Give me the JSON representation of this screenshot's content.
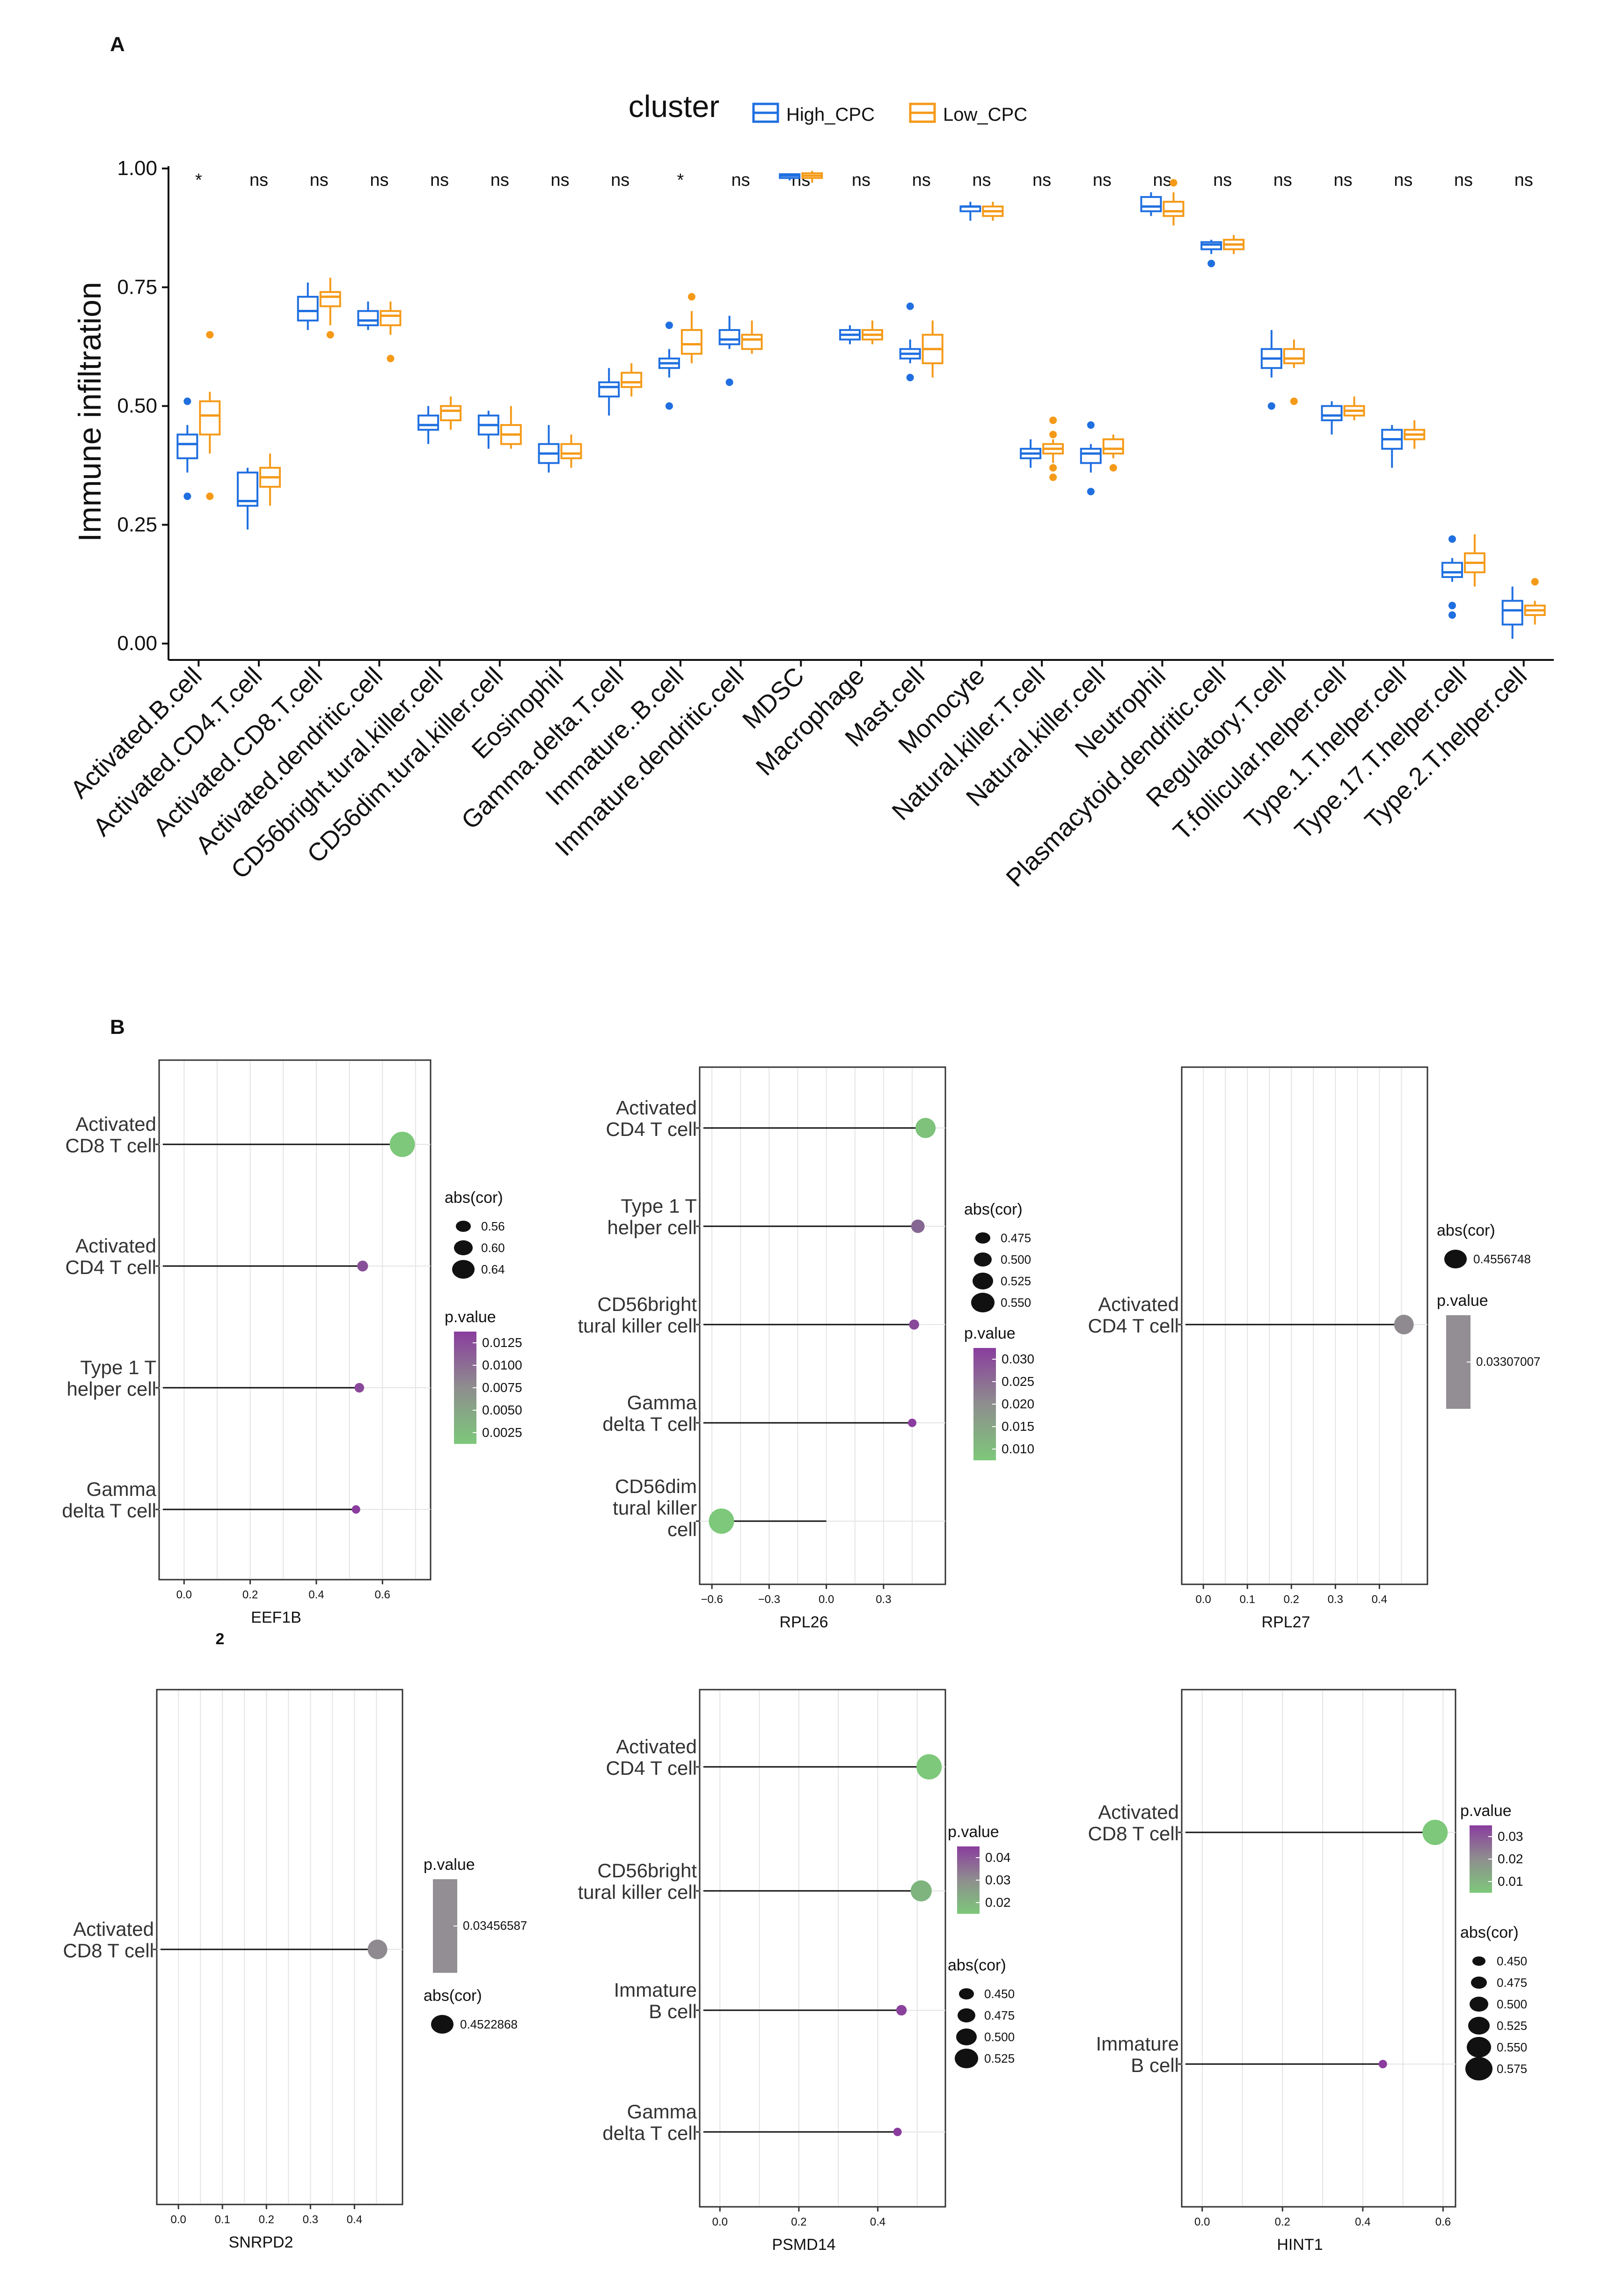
{
  "panel_a_label": "A",
  "panel_b_label": "B",
  "colors": {
    "high": "#1f6fe0",
    "low": "#f59a18",
    "green": "#7dc87a",
    "purple": "#8a3d9e",
    "gray": "#999999"
  },
  "chart_data": [
    {
      "type": "box",
      "id": "A",
      "legend_title": "cluster",
      "ylabel": "Immune infiltration",
      "ylim": [
        0,
        1.0
      ],
      "yticks": [
        "0.00",
        "0.25",
        "0.50",
        "0.75",
        "1.00"
      ],
      "series": [
        {
          "name": "High_CPC",
          "color": "#1f6fe0"
        },
        {
          "name": "Low_CPC",
          "color": "#f59a18"
        }
      ],
      "categories": [
        "Activated.B.cell",
        "Activated.CD4.T.cell",
        "Activated.CD8.T.cell",
        "Activated.dendritic.cell",
        "CD56bright.tural.killer.cell",
        "CD56dim.tural.killer.cell",
        "Eosinophil",
        "Gamma.delta.T.cell",
        "Immature..B.cell",
        "Immature.dendritic.cell",
        "MDSC",
        "Macrophage",
        "Mast.cell",
        "Monocyte",
        "Natural.killer.T.cell",
        "Natural.killer.cell",
        "Neutrophil",
        "Plasmacytoid.dendritic.cell",
        "Regulatory.T.cell",
        "T.follicular.helper.cell",
        "Type.1.T.helper.cell",
        "Type.17.T.helper.cell",
        "Type.2.T.helper.cell"
      ],
      "significance": [
        "*",
        "ns",
        "ns",
        "ns",
        "ns",
        "ns",
        "ns",
        "ns",
        "*",
        "ns",
        "ns",
        "ns",
        "ns",
        "ns",
        "ns",
        "ns",
        "ns",
        "ns",
        "ns",
        "ns",
        "ns",
        "ns",
        "ns"
      ],
      "high": [
        [
          0.36,
          0.39,
          0.42,
          0.44,
          0.46,
          [
            0.31,
            0.51
          ]
        ],
        [
          0.24,
          0.29,
          0.3,
          0.36,
          0.37,
          []
        ],
        [
          0.66,
          0.68,
          0.7,
          0.73,
          0.76,
          []
        ],
        [
          0.66,
          0.67,
          0.68,
          0.7,
          0.72,
          []
        ],
        [
          0.42,
          0.45,
          0.46,
          0.48,
          0.5,
          []
        ],
        [
          0.41,
          0.44,
          0.46,
          0.48,
          0.49,
          []
        ],
        [
          0.36,
          0.38,
          0.4,
          0.42,
          0.46,
          []
        ],
        [
          0.48,
          0.52,
          0.54,
          0.55,
          0.58,
          []
        ],
        [
          0.56,
          0.58,
          0.59,
          0.6,
          0.62,
          [
            0.5,
            0.67
          ]
        ],
        [
          0.62,
          0.63,
          0.64,
          0.66,
          0.69,
          [
            0.55
          ]
        ],
        [
          0.975,
          0.98,
          0.985,
          0.988,
          0.99,
          []
        ],
        [
          0.63,
          0.64,
          0.65,
          0.66,
          0.67,
          []
        ],
        [
          0.59,
          0.6,
          0.61,
          0.62,
          0.64,
          [
            0.56,
            0.71
          ]
        ],
        [
          0.89,
          0.91,
          0.92,
          0.92,
          0.93,
          []
        ],
        [
          0.37,
          0.39,
          0.4,
          0.41,
          0.43,
          []
        ],
        [
          0.36,
          0.38,
          0.4,
          0.41,
          0.42,
          [
            0.32,
            0.46
          ]
        ],
        [
          0.9,
          0.91,
          0.92,
          0.94,
          0.95,
          []
        ],
        [
          0.82,
          0.83,
          0.84,
          0.845,
          0.85,
          [
            0.8
          ]
        ],
        [
          0.56,
          0.58,
          0.6,
          0.62,
          0.66,
          [
            0.5
          ]
        ],
        [
          0.44,
          0.47,
          0.48,
          0.5,
          0.51,
          []
        ],
        [
          0.37,
          0.41,
          0.43,
          0.45,
          0.46,
          []
        ],
        [
          0.13,
          0.14,
          0.15,
          0.17,
          0.18,
          [
            0.06,
            0.08,
            0.22
          ]
        ],
        [
          0.01,
          0.04,
          0.07,
          0.09,
          0.12,
          []
        ]
      ],
      "low": [
        [
          0.4,
          0.44,
          0.48,
          0.51,
          0.53,
          [
            0.31,
            0.65
          ]
        ],
        [
          0.29,
          0.33,
          0.35,
          0.37,
          0.4,
          []
        ],
        [
          0.67,
          0.71,
          0.73,
          0.74,
          0.77,
          [
            0.65
          ]
        ],
        [
          0.65,
          0.67,
          0.69,
          0.7,
          0.72,
          [
            0.6
          ]
        ],
        [
          0.45,
          0.47,
          0.49,
          0.5,
          0.52,
          []
        ],
        [
          0.41,
          0.42,
          0.44,
          0.46,
          0.5,
          []
        ],
        [
          0.37,
          0.39,
          0.4,
          0.42,
          0.44,
          []
        ],
        [
          0.52,
          0.54,
          0.55,
          0.57,
          0.59,
          []
        ],
        [
          0.59,
          0.61,
          0.63,
          0.66,
          0.7,
          [
            0.73
          ]
        ],
        [
          0.61,
          0.62,
          0.64,
          0.65,
          0.68,
          []
        ],
        [
          0.97,
          0.98,
          0.985,
          0.99,
          0.995,
          []
        ],
        [
          0.63,
          0.64,
          0.65,
          0.66,
          0.68,
          []
        ],
        [
          0.56,
          0.59,
          0.62,
          0.65,
          0.68,
          []
        ],
        [
          0.89,
          0.9,
          0.91,
          0.92,
          0.93,
          []
        ],
        [
          0.38,
          0.4,
          0.41,
          0.42,
          0.43,
          [
            0.35,
            0.37,
            0.44,
            0.47
          ]
        ],
        [
          0.39,
          0.4,
          0.41,
          0.43,
          0.44,
          [
            0.37
          ]
        ],
        [
          0.88,
          0.9,
          0.91,
          0.93,
          0.95,
          [
            0.97
          ]
        ],
        [
          0.82,
          0.83,
          0.84,
          0.85,
          0.86,
          []
        ],
        [
          0.58,
          0.59,
          0.6,
          0.62,
          0.64,
          [
            0.51
          ]
        ],
        [
          0.47,
          0.48,
          0.49,
          0.5,
          0.52,
          []
        ],
        [
          0.41,
          0.43,
          0.44,
          0.45,
          0.47,
          []
        ],
        [
          0.12,
          0.15,
          0.17,
          0.19,
          0.23,
          []
        ],
        [
          0.04,
          0.06,
          0.07,
          0.08,
          0.09,
          [
            0.13
          ]
        ]
      ]
    },
    {
      "type": "lollipop",
      "id": "B1",
      "xlabel": "EEF1B",
      "extra_label": "2",
      "xlim": [
        -0.05,
        0.72
      ],
      "xticks": [
        0,
        0.2,
        0.4,
        0.6
      ],
      "xtick_labels": [
        "0.0",
        "0.2",
        "0.4",
        "0.6"
      ],
      "items": [
        {
          "label": [
            "Activated",
            "CD8 T cell"
          ],
          "cor": 0.66,
          "p": 0.0025
        },
        {
          "label": [
            "Activated",
            "CD4 T cell"
          ],
          "cor": 0.54,
          "p": 0.0125
        },
        {
          "label": [
            "Type 1 T",
            "helper  cell"
          ],
          "cor": 0.53,
          "p": 0.013
        },
        {
          "label": [
            "Gamma",
            "delta T cell"
          ],
          "cor": 0.52,
          "p": 0.014
        }
      ],
      "legends": [
        {
          "kind": "size",
          "title": "abs(cor)",
          "labels": [
            "0.56",
            "0.60",
            "0.64"
          ],
          "sizes": [
            12,
            16,
            20
          ]
        },
        {
          "kind": "color",
          "title": "p.value",
          "labels": [
            "0.0125",
            "0.0100",
            "0.0075",
            "0.0050",
            "0.0025"
          ]
        }
      ]
    },
    {
      "type": "lollipop",
      "id": "B2",
      "xlabel": "RPL26",
      "xlim": [
        -0.62,
        0.58
      ],
      "xticks": [
        -0.6,
        -0.3,
        0,
        0.3
      ],
      "xtick_labels": [
        "−0.6",
        "−0.3",
        "0.0",
        "0.3"
      ],
      "items": [
        {
          "label": [
            "Activated",
            "CD4 T cell"
          ],
          "cor": 0.52,
          "p": 0.01
        },
        {
          "label": [
            "Type 1 T",
            "helper cell"
          ],
          "cor": 0.48,
          "p": 0.025
        },
        {
          "label": [
            "CD56bright",
            "tural killer cell"
          ],
          "cor": 0.46,
          "p": 0.03
        },
        {
          "label": [
            "Gamma",
            "delta T cell"
          ],
          "cor": 0.45,
          "p": 0.032
        },
        {
          "label": [
            "CD56dim",
            "tural killer",
            "cell"
          ],
          "cor": -0.55,
          "p": 0.009
        }
      ],
      "legends": [
        {
          "kind": "size",
          "title": "abs(cor)",
          "labels": [
            "0.475",
            "0.500",
            "0.525",
            "0.550"
          ],
          "sizes": [
            12,
            15,
            18,
            21
          ]
        },
        {
          "kind": "color",
          "title": "p.value",
          "labels": [
            "0.030",
            "0.025",
            "0.020",
            "0.015",
            "0.010"
          ]
        }
      ]
    },
    {
      "type": "lollipop",
      "id": "B3",
      "xlabel": "RPL27",
      "xlim": [
        -0.03,
        0.49
      ],
      "xticks": [
        0,
        0.1,
        0.2,
        0.3,
        0.4
      ],
      "xtick_labels": [
        "0.0",
        "0.1",
        "0.2",
        "0.3",
        "0.4"
      ],
      "items": [
        {
          "label": [
            "Activated",
            "CD4 T cell"
          ],
          "cor": 0.4556748,
          "p": 0.03307007
        }
      ],
      "legends": [
        {
          "kind": "size",
          "title": "abs(cor)",
          "labels": [
            "0.4556748"
          ],
          "sizes": [
            20
          ]
        },
        {
          "kind": "gray",
          "title": "p.value",
          "labels": [
            "0.03307007"
          ]
        }
      ]
    },
    {
      "type": "lollipop",
      "id": "B4",
      "xlabel": "SNRPD2",
      "xlim": [
        -0.03,
        0.49
      ],
      "xticks": [
        0,
        0.1,
        0.2,
        0.3,
        0.4
      ],
      "xtick_labels": [
        "0.0",
        "0.1",
        "0.2",
        "0.3",
        "0.4"
      ],
      "items": [
        {
          "label": [
            "Activated",
            "CD8 T cell"
          ],
          "cor": 0.4522868,
          "p": 0.03456587
        }
      ],
      "legends": [
        {
          "kind": "gray",
          "title": "p.value",
          "labels": [
            "0.03456587"
          ]
        },
        {
          "kind": "size",
          "title": "abs(cor)",
          "labels": [
            "0.4522868"
          ],
          "sizes": [
            20
          ]
        }
      ]
    },
    {
      "type": "lollipop",
      "id": "B5",
      "xlabel": "PSMD14",
      "xlim": [
        -0.03,
        0.55
      ],
      "xticks": [
        0,
        0.2,
        0.4
      ],
      "xtick_labels": [
        "0.0",
        "0.2",
        "0.4"
      ],
      "items": [
        {
          "label": [
            "Activated",
            "CD4 T cell"
          ],
          "cor": 0.53,
          "p": 0.018
        },
        {
          "label": [
            "CD56bright",
            "tural killer cell"
          ],
          "cor": 0.51,
          "p": 0.022
        },
        {
          "label": [
            "Immature",
            "B cell"
          ],
          "cor": 0.46,
          "p": 0.045
        },
        {
          "label": [
            "Gamma",
            "delta T cell"
          ],
          "cor": 0.45,
          "p": 0.046
        }
      ],
      "legends": [
        {
          "kind": "color",
          "title": "p.value",
          "labels": [
            "0.04",
            "0.03",
            "0.02"
          ]
        },
        {
          "kind": "size",
          "title": "abs(cor)",
          "labels": [
            "0.450",
            "0.475",
            "0.500",
            "0.525"
          ],
          "sizes": [
            12,
            15,
            18,
            21
          ]
        }
      ]
    },
    {
      "type": "lollipop",
      "id": "B6",
      "xlabel": "HINT1",
      "xlim": [
        -0.03,
        0.61
      ],
      "xticks": [
        0,
        0.2,
        0.4,
        0.6
      ],
      "xtick_labels": [
        "0.0",
        "0.2",
        "0.4",
        "0.6"
      ],
      "items": [
        {
          "label": [
            "Activated",
            "CD8 T cell"
          ],
          "cor": 0.58,
          "p": 0.005
        },
        {
          "label": [
            "Immature",
            "B cell"
          ],
          "cor": 0.45,
          "p": 0.036
        }
      ],
      "legends": [
        {
          "kind": "color",
          "title": "p.value",
          "labels": [
            "0.03",
            "0.02",
            "0.01"
          ]
        },
        {
          "kind": "size",
          "title": "abs(cor)",
          "labels": [
            "0.450",
            "0.475",
            "0.500",
            "0.525",
            "0.550",
            "0.575"
          ],
          "sizes": [
            10,
            13,
            16,
            19,
            22,
            25
          ]
        }
      ]
    }
  ]
}
